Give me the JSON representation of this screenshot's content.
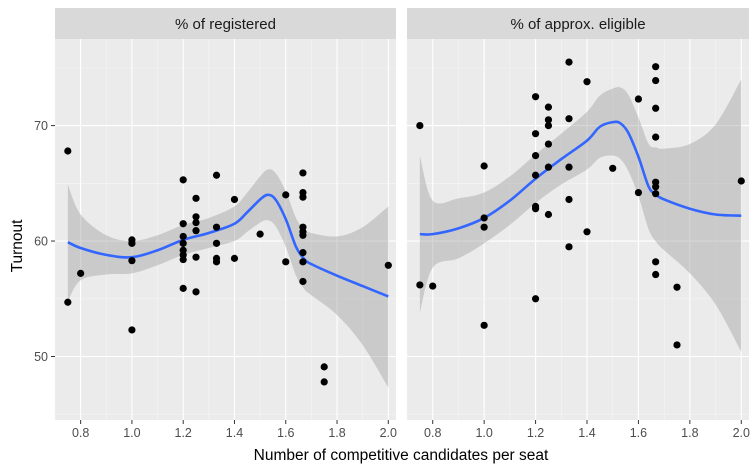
{
  "chart_data": {
    "type": "scatter",
    "xlabel": "Number of competitive candidates per seat",
    "ylabel": "Turnout",
    "xlim": [
      0.7,
      2.03
    ],
    "ylim": [
      44.5,
      77.5
    ],
    "xticks": [
      0.8,
      1.0,
      1.2,
      1.4,
      1.6,
      1.8,
      2.0
    ],
    "xtick_labels": [
      "0.8",
      "1.0",
      "1.2",
      "1.4",
      "1.6",
      "1.8",
      "2.0"
    ],
    "yticks": [
      50,
      60,
      70
    ],
    "ytick_labels": [
      "50",
      "60",
      "70"
    ],
    "grid": true,
    "facets": [
      {
        "strip_label": "% of registered",
        "points": [
          [
            0.75,
            67.8
          ],
          [
            0.75,
            54.7
          ],
          [
            0.8,
            57.2
          ],
          [
            1.0,
            60.1
          ],
          [
            1.0,
            59.8
          ],
          [
            1.0,
            58.3
          ],
          [
            1.0,
            52.3
          ],
          [
            1.2,
            65.3
          ],
          [
            1.2,
            61.5
          ],
          [
            1.2,
            60.4
          ],
          [
            1.2,
            59.8
          ],
          [
            1.2,
            59.2
          ],
          [
            1.2,
            58.8
          ],
          [
            1.2,
            58.4
          ],
          [
            1.2,
            55.9
          ],
          [
            1.25,
            63.7
          ],
          [
            1.25,
            62.1
          ],
          [
            1.25,
            61.6
          ],
          [
            1.25,
            60.9
          ],
          [
            1.25,
            58.6
          ],
          [
            1.25,
            55.6
          ],
          [
            1.33,
            65.7
          ],
          [
            1.33,
            61.2
          ],
          [
            1.33,
            59.8
          ],
          [
            1.33,
            58.5
          ],
          [
            1.33,
            58.2
          ],
          [
            1.4,
            63.6
          ],
          [
            1.4,
            58.5
          ],
          [
            1.5,
            60.6
          ],
          [
            1.6,
            64.0
          ],
          [
            1.6,
            58.2
          ],
          [
            1.667,
            65.9
          ],
          [
            1.667,
            64.2
          ],
          [
            1.667,
            63.8
          ],
          [
            1.667,
            61.2
          ],
          [
            1.667,
            60.8
          ],
          [
            1.667,
            60.5
          ],
          [
            1.667,
            59.0
          ],
          [
            1.667,
            58.2
          ],
          [
            1.667,
            56.5
          ],
          [
            1.75,
            49.1
          ],
          [
            1.75,
            47.8
          ],
          [
            2.0,
            57.9
          ]
        ],
        "smooth_x": [
          0.75,
          0.8,
          0.9,
          1.0,
          1.1,
          1.2,
          1.3,
          1.4,
          1.45,
          1.5,
          1.53,
          1.56,
          1.6,
          1.64,
          1.67,
          1.7,
          1.8,
          1.9,
          2.0
        ],
        "smooth_y": [
          59.9,
          59.4,
          58.8,
          58.6,
          59.2,
          60.1,
          60.7,
          61.5,
          62.5,
          63.6,
          64.0,
          63.6,
          61.9,
          59.5,
          58.5,
          58.0,
          57.0,
          56.1,
          55.2
        ],
        "band_lower": [
          54.8,
          56.6,
          57.1,
          57.2,
          57.9,
          58.8,
          59.4,
          60.0,
          60.8,
          61.6,
          61.8,
          61.3,
          59.5,
          57.0,
          55.9,
          55.3,
          53.6,
          51.0,
          47.3
        ],
        "band_upper": [
          64.9,
          62.3,
          60.5,
          60.0,
          60.5,
          61.4,
          62.0,
          63.0,
          64.2,
          65.6,
          66.2,
          65.9,
          64.3,
          62.0,
          61.1,
          60.7,
          60.4,
          61.2,
          63.0
        ]
      },
      {
        "strip_label": "% of approx. eligible",
        "points": [
          [
            0.75,
            70.0
          ],
          [
            0.75,
            56.2
          ],
          [
            0.8,
            56.1
          ],
          [
            1.0,
            66.5
          ],
          [
            1.0,
            62.0
          ],
          [
            1.0,
            61.2
          ],
          [
            1.0,
            52.7
          ],
          [
            1.2,
            72.5
          ],
          [
            1.2,
            69.3
          ],
          [
            1.2,
            67.4
          ],
          [
            1.2,
            65.7
          ],
          [
            1.2,
            63.0
          ],
          [
            1.2,
            62.8
          ],
          [
            1.2,
            55.0
          ],
          [
            1.25,
            71.6
          ],
          [
            1.25,
            70.5
          ],
          [
            1.25,
            70.0
          ],
          [
            1.25,
            68.4
          ],
          [
            1.25,
            66.4
          ],
          [
            1.25,
            62.3
          ],
          [
            1.33,
            75.5
          ],
          [
            1.33,
            70.6
          ],
          [
            1.33,
            66.4
          ],
          [
            1.33,
            63.6
          ],
          [
            1.33,
            59.5
          ],
          [
            1.4,
            73.8
          ],
          [
            1.4,
            60.8
          ],
          [
            1.5,
            66.3
          ],
          [
            1.6,
            72.3
          ],
          [
            1.6,
            64.2
          ],
          [
            1.667,
            75.1
          ],
          [
            1.667,
            73.9
          ],
          [
            1.667,
            71.5
          ],
          [
            1.667,
            69.0
          ],
          [
            1.667,
            65.1
          ],
          [
            1.667,
            64.7
          ],
          [
            1.667,
            64.1
          ],
          [
            1.667,
            58.2
          ],
          [
            1.667,
            57.1
          ],
          [
            1.75,
            56.0
          ],
          [
            1.75,
            51.0
          ],
          [
            2.0,
            65.2
          ]
        ],
        "smooth_x": [
          0.75,
          0.8,
          0.9,
          1.0,
          1.1,
          1.2,
          1.3,
          1.4,
          1.45,
          1.5,
          1.53,
          1.56,
          1.6,
          1.64,
          1.67,
          1.7,
          1.8,
          1.9,
          2.0
        ],
        "smooth_y": [
          60.6,
          60.6,
          61.1,
          62.0,
          63.5,
          65.4,
          67.1,
          68.7,
          69.9,
          70.3,
          70.2,
          69.4,
          67.3,
          64.7,
          64.0,
          63.6,
          62.8,
          62.3,
          62.2
        ],
        "band_lower": [
          53.8,
          57.7,
          58.5,
          59.8,
          61.4,
          63.3,
          64.9,
          66.2,
          67.2,
          67.4,
          67.1,
          66.1,
          63.9,
          61.0,
          59.9,
          59.2,
          57.2,
          54.5,
          50.4
        ],
        "band_upper": [
          67.4,
          63.5,
          63.7,
          64.2,
          65.6,
          67.5,
          69.3,
          71.2,
          72.6,
          73.2,
          73.3,
          72.7,
          70.7,
          68.4,
          68.1,
          68.0,
          68.4,
          70.1,
          74.0
        ]
      }
    ],
    "colors": {
      "panel_background": "#ebebeb",
      "strip_background": "#d9d9d9",
      "grid_major": "#ffffff",
      "grid_minor": "#f5f5f5",
      "points": "#000000",
      "smooth_line": "#3366ff",
      "confidence_band": "#999999"
    }
  }
}
